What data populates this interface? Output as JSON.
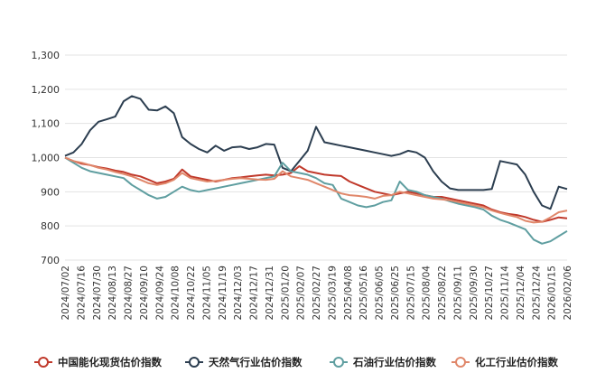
{
  "chart_data": {
    "type": "line",
    "ylim": [
      700,
      1300
    ],
    "yticks": [
      "1,300",
      "1,200",
      "1,100",
      "1,000",
      "900",
      "800",
      "700"
    ],
    "ytick_values": [
      1300,
      1200,
      1100,
      1000,
      900,
      800,
      700
    ],
    "x_labels": [
      "2024/07/02",
      "2024/07/16",
      "2024/07/30",
      "2024/08/13",
      "2024/08/27",
      "2024/09/10",
      "2024/09/24",
      "2024/10/08",
      "2024/10/22",
      "2024/11/05",
      "2024/11/19",
      "2024/12/03",
      "2024/12/17",
      "2024/12/31",
      "2025/01/20",
      "2025/02/07",
      "2025/02/27",
      "2025/03/19",
      "2025/04/08",
      "2025/05/16",
      "2025/06/05",
      "2025/06/25",
      "2025/07/15",
      "2025/08/04",
      "2025/08/22",
      "2025/09/11",
      "2025/09/30",
      "2025/10/27",
      "2025/11/14",
      "2025/12/04",
      "2025/12/24",
      "2026/01/15",
      "2026/02/06"
    ],
    "grid": true,
    "legend_position": "bottom",
    "series": [
      {
        "name": "中国能化现货估价指数",
        "color": "#c0392b",
        "points": [
          [
            0,
            1000
          ],
          [
            1,
            990
          ],
          [
            2,
            982
          ],
          [
            3,
            978
          ],
          [
            4,
            972
          ],
          [
            5,
            968
          ],
          [
            6,
            962
          ],
          [
            7,
            958
          ],
          [
            8,
            950
          ],
          [
            9,
            945
          ],
          [
            10,
            935
          ],
          [
            11,
            925
          ],
          [
            12,
            930
          ],
          [
            13,
            938
          ],
          [
            14,
            965
          ],
          [
            15,
            945
          ],
          [
            16,
            940
          ],
          [
            17,
            935
          ],
          [
            18,
            930
          ],
          [
            19,
            935
          ],
          [
            20,
            940
          ],
          [
            21,
            942
          ],
          [
            22,
            945
          ],
          [
            23,
            948
          ],
          [
            24,
            950
          ],
          [
            25,
            948
          ],
          [
            26,
            950
          ],
          [
            27,
            955
          ],
          [
            28,
            975
          ],
          [
            29,
            960
          ],
          [
            30,
            955
          ],
          [
            31,
            950
          ],
          [
            32,
            948
          ],
          [
            33,
            946
          ],
          [
            34,
            930
          ],
          [
            35,
            920
          ],
          [
            36,
            910
          ],
          [
            37,
            900
          ],
          [
            38,
            895
          ],
          [
            39,
            890
          ],
          [
            40,
            895
          ],
          [
            41,
            900
          ],
          [
            42,
            895
          ],
          [
            43,
            890
          ],
          [
            44,
            885
          ],
          [
            45,
            885
          ],
          [
            46,
            880
          ],
          [
            47,
            875
          ],
          [
            48,
            870
          ],
          [
            49,
            865
          ],
          [
            50,
            860
          ],
          [
            51,
            848
          ],
          [
            52,
            840
          ],
          [
            53,
            835
          ],
          [
            54,
            832
          ],
          [
            55,
            826
          ],
          [
            56,
            818
          ],
          [
            57,
            812
          ],
          [
            58,
            818
          ],
          [
            59,
            825
          ],
          [
            60,
            822
          ]
        ]
      },
      {
        "name": "天然气行业估价指数",
        "color": "#2c3e50",
        "points": [
          [
            0,
            1005
          ],
          [
            1,
            1015
          ],
          [
            2,
            1040
          ],
          [
            3,
            1080
          ],
          [
            4,
            1105
          ],
          [
            5,
            1112
          ],
          [
            6,
            1120
          ],
          [
            7,
            1165
          ],
          [
            8,
            1180
          ],
          [
            9,
            1172
          ],
          [
            10,
            1140
          ],
          [
            11,
            1138
          ],
          [
            12,
            1150
          ],
          [
            13,
            1130
          ],
          [
            14,
            1060
          ],
          [
            15,
            1040
          ],
          [
            16,
            1025
          ],
          [
            17,
            1015
          ],
          [
            18,
            1035
          ],
          [
            19,
            1020
          ],
          [
            20,
            1030
          ],
          [
            21,
            1032
          ],
          [
            22,
            1025
          ],
          [
            23,
            1030
          ],
          [
            24,
            1040
          ],
          [
            25,
            1038
          ],
          [
            26,
            970
          ],
          [
            27,
            960
          ],
          [
            28,
            990
          ],
          [
            29,
            1020
          ],
          [
            30,
            1090
          ],
          [
            31,
            1045
          ],
          [
            32,
            1040
          ],
          [
            33,
            1035
          ],
          [
            34,
            1030
          ],
          [
            35,
            1025
          ],
          [
            36,
            1020
          ],
          [
            37,
            1015
          ],
          [
            38,
            1010
          ],
          [
            39,
            1005
          ],
          [
            40,
            1010
          ],
          [
            41,
            1020
          ],
          [
            42,
            1015
          ],
          [
            43,
            1000
          ],
          [
            44,
            960
          ],
          [
            45,
            930
          ],
          [
            46,
            910
          ],
          [
            47,
            905
          ],
          [
            48,
            905
          ],
          [
            49,
            905
          ],
          [
            50,
            905
          ],
          [
            51,
            908
          ],
          [
            52,
            990
          ],
          [
            53,
            985
          ],
          [
            54,
            980
          ],
          [
            55,
            950
          ],
          [
            56,
            900
          ],
          [
            57,
            860
          ],
          [
            58,
            850
          ],
          [
            59,
            915
          ],
          [
            60,
            908
          ]
        ]
      },
      {
        "name": "石油行业估价指数",
        "color": "#5f9ea0",
        "points": [
          [
            0,
            1000
          ],
          [
            1,
            985
          ],
          [
            2,
            970
          ],
          [
            3,
            960
          ],
          [
            4,
            955
          ],
          [
            5,
            950
          ],
          [
            6,
            945
          ],
          [
            7,
            940
          ],
          [
            8,
            920
          ],
          [
            9,
            905
          ],
          [
            10,
            890
          ],
          [
            11,
            880
          ],
          [
            12,
            885
          ],
          [
            13,
            900
          ],
          [
            14,
            915
          ],
          [
            15,
            905
          ],
          [
            16,
            900
          ],
          [
            17,
            905
          ],
          [
            18,
            910
          ],
          [
            19,
            915
          ],
          [
            20,
            920
          ],
          [
            21,
            925
          ],
          [
            22,
            930
          ],
          [
            23,
            935
          ],
          [
            24,
            940
          ],
          [
            25,
            945
          ],
          [
            26,
            985
          ],
          [
            27,
            960
          ],
          [
            28,
            955
          ],
          [
            29,
            950
          ],
          [
            30,
            940
          ],
          [
            31,
            925
          ],
          [
            32,
            920
          ],
          [
            33,
            880
          ],
          [
            34,
            870
          ],
          [
            35,
            860
          ],
          [
            36,
            855
          ],
          [
            37,
            860
          ],
          [
            38,
            870
          ],
          [
            39,
            875
          ],
          [
            40,
            930
          ],
          [
            41,
            905
          ],
          [
            42,
            900
          ],
          [
            43,
            890
          ],
          [
            44,
            885
          ],
          [
            45,
            880
          ],
          [
            46,
            872
          ],
          [
            47,
            865
          ],
          [
            48,
            860
          ],
          [
            49,
            855
          ],
          [
            50,
            848
          ],
          [
            51,
            830
          ],
          [
            52,
            818
          ],
          [
            53,
            810
          ],
          [
            54,
            800
          ],
          [
            55,
            790
          ],
          [
            56,
            760
          ],
          [
            57,
            748
          ],
          [
            58,
            755
          ],
          [
            59,
            770
          ],
          [
            60,
            785
          ]
        ]
      },
      {
        "name": "化工行业估价指数",
        "color": "#e0876a",
        "points": [
          [
            0,
            1000
          ],
          [
            1,
            990
          ],
          [
            2,
            985
          ],
          [
            3,
            978
          ],
          [
            4,
            970
          ],
          [
            5,
            965
          ],
          [
            6,
            958
          ],
          [
            7,
            952
          ],
          [
            8,
            945
          ],
          [
            9,
            935
          ],
          [
            10,
            925
          ],
          [
            11,
            920
          ],
          [
            12,
            925
          ],
          [
            13,
            935
          ],
          [
            14,
            955
          ],
          [
            15,
            940
          ],
          [
            16,
            935
          ],
          [
            17,
            930
          ],
          [
            18,
            932
          ],
          [
            19,
            935
          ],
          [
            20,
            938
          ],
          [
            21,
            940
          ],
          [
            22,
            938
          ],
          [
            23,
            936
          ],
          [
            24,
            935
          ],
          [
            25,
            938
          ],
          [
            26,
            960
          ],
          [
            27,
            945
          ],
          [
            28,
            940
          ],
          [
            29,
            935
          ],
          [
            30,
            925
          ],
          [
            31,
            915
          ],
          [
            32,
            905
          ],
          [
            33,
            895
          ],
          [
            34,
            890
          ],
          [
            35,
            888
          ],
          [
            36,
            885
          ],
          [
            37,
            880
          ],
          [
            38,
            888
          ],
          [
            39,
            890
          ],
          [
            40,
            900
          ],
          [
            41,
            895
          ],
          [
            42,
            890
          ],
          [
            43,
            885
          ],
          [
            44,
            880
          ],
          [
            45,
            878
          ],
          [
            46,
            875
          ],
          [
            47,
            870
          ],
          [
            48,
            865
          ],
          [
            49,
            860
          ],
          [
            50,
            855
          ],
          [
            51,
            845
          ],
          [
            52,
            838
          ],
          [
            53,
            832
          ],
          [
            54,
            826
          ],
          [
            55,
            815
          ],
          [
            56,
            810
          ],
          [
            57,
            812
          ],
          [
            58,
            825
          ],
          [
            59,
            840
          ],
          [
            60,
            845
          ]
        ]
      }
    ]
  }
}
